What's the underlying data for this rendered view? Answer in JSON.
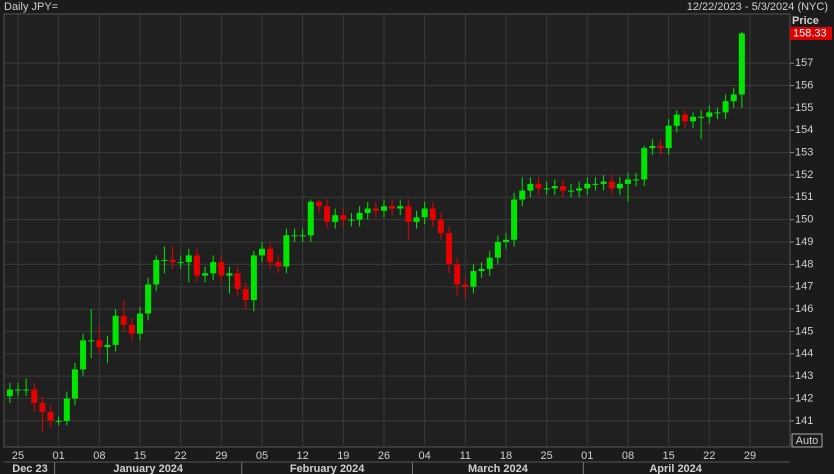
{
  "chart_data": {
    "type": "candlestick",
    "title": "Daily JPY=",
    "date_range": "12/22/2023 - 5/3/2024 (NYC)",
    "y_label": "Price",
    "scale_button": "Auto",
    "periods": [
      "Dec 23",
      "January 2024",
      "February 2024",
      "March 2024",
      "April 2024"
    ],
    "categories": [
      null,
      "25",
      null,
      null,
      null,
      null,
      "01",
      null,
      null,
      null,
      null,
      "08",
      null,
      null,
      null,
      null,
      "15",
      null,
      null,
      null,
      null,
      "22",
      null,
      null,
      null,
      null,
      "29",
      null,
      null,
      null,
      null,
      "05",
      null,
      null,
      null,
      null,
      "12",
      null,
      null,
      null,
      null,
      "19",
      null,
      null,
      null,
      null,
      "26",
      null,
      null,
      null,
      null,
      "04",
      null,
      null,
      null,
      null,
      "11",
      null,
      null,
      null,
      null,
      "18",
      null,
      null,
      null,
      null,
      "25",
      null,
      null,
      null,
      null,
      "01",
      null,
      null,
      null,
      null,
      "08",
      null,
      null,
      null,
      null,
      "15",
      null,
      null,
      null,
      null,
      "22",
      null,
      null,
      null,
      null,
      "29"
    ],
    "open": [
      142.1,
      142.4,
      142.4,
      142.4,
      141.8,
      141.4,
      141.0,
      141.0,
      142.0,
      143.3,
      144.6,
      144.6,
      144.3,
      144.4,
      145.7,
      145.3,
      144.9,
      145.8,
      147.1,
      148.2,
      148.2,
      148.1,
      148.1,
      148.4,
      147.5,
      147.6,
      148.1,
      147.5,
      147.6,
      146.9,
      146.4,
      148.4,
      148.7,
      148.1,
      147.9,
      149.3,
      149.3,
      149.3,
      150.8,
      150.6,
      149.9,
      150.2,
      150.0,
      150.0,
      150.3,
      150.5,
      150.4,
      150.6,
      150.5,
      150.6,
      149.9,
      150.1,
      150.5,
      150.0,
      149.4,
      148.0,
      147.1,
      147.0,
      147.7,
      147.8,
      148.3,
      149.0,
      149.1,
      150.9,
      151.3,
      151.6,
      151.4,
      151.4,
      151.5,
      151.3,
      151.3,
      151.4,
      151.6,
      151.6,
      151.7,
      151.4,
      151.6,
      151.8,
      151.8,
      153.2,
      153.3,
      153.2,
      154.2,
      154.7,
      154.4,
      154.6,
      154.6,
      154.8,
      154.8,
      155.3,
      155.6,
      null
    ],
    "high": [
      142.7,
      142.7,
      142.9,
      142.7,
      142.1,
      141.7,
      141.2,
      142.3,
      143.6,
      144.9,
      146.0,
      145.2,
      144.8,
      146.0,
      146.4,
      145.6,
      146.1,
      147.4,
      148.4,
      148.8,
      148.8,
      148.4,
      148.7,
      148.7,
      147.9,
      148.4,
      148.4,
      147.9,
      147.9,
      147.2,
      148.6,
      149.0,
      149.0,
      148.4,
      149.6,
      149.6,
      149.6,
      150.9,
      150.9,
      150.9,
      150.5,
      150.5,
      150.3,
      150.6,
      150.8,
      150.8,
      150.9,
      150.9,
      150.9,
      150.9,
      150.4,
      150.8,
      150.8,
      150.3,
      149.7,
      148.3,
      147.4,
      148.0,
      148.1,
      148.6,
      149.3,
      149.4,
      151.2,
      151.9,
      151.9,
      151.9,
      151.7,
      151.8,
      151.8,
      151.6,
      151.7,
      151.9,
      151.9,
      152.0,
      152.0,
      151.9,
      152.1,
      152.1,
      153.3,
      153.6,
      153.6,
      154.5,
      154.9,
      154.9,
      154.8,
      154.9,
      155.1,
      155.0,
      155.6,
      155.9,
      158.4,
      null
    ],
    "low": [
      141.8,
      142.1,
      142.1,
      141.4,
      140.5,
      140.7,
      140.8,
      140.8,
      141.7,
      143.0,
      143.8,
      144.0,
      143.6,
      144.1,
      145.0,
      144.6,
      144.6,
      145.5,
      146.8,
      147.6,
      147.8,
      147.8,
      147.2,
      147.2,
      147.2,
      147.3,
      147.2,
      146.7,
      146.6,
      146.0,
      145.9,
      148.1,
      147.8,
      147.6,
      147.6,
      149.0,
      149.0,
      149.0,
      150.3,
      149.6,
      149.6,
      149.7,
      149.7,
      149.7,
      150.0,
      150.1,
      150.1,
      150.2,
      150.2,
      149.1,
      149.6,
      149.8,
      149.7,
      149.1,
      147.6,
      146.6,
      146.5,
      146.7,
      147.4,
      147.5,
      148.0,
      148.7,
      148.8,
      150.6,
      151.0,
      151.1,
      151.1,
      151.1,
      151.0,
      151.0,
      151.0,
      151.1,
      151.3,
      151.3,
      151.1,
      151.1,
      150.8,
      151.5,
      151.5,
      152.9,
      152.9,
      152.9,
      153.9,
      154.1,
      154.1,
      153.6,
      154.3,
      154.5,
      154.5,
      155.0,
      155.0,
      null
    ],
    "close": [
      142.4,
      142.4,
      142.4,
      141.8,
      141.4,
      141.0,
      141.0,
      142.0,
      143.3,
      144.6,
      144.6,
      144.3,
      144.4,
      145.7,
      145.3,
      144.9,
      145.8,
      147.1,
      148.2,
      148.2,
      148.1,
      148.1,
      148.4,
      147.5,
      147.6,
      148.1,
      147.5,
      147.6,
      146.9,
      146.4,
      148.4,
      148.7,
      148.1,
      147.9,
      149.3,
      149.3,
      149.3,
      150.8,
      150.6,
      149.9,
      150.2,
      150.0,
      150.0,
      150.3,
      150.5,
      150.4,
      150.6,
      150.5,
      150.6,
      149.9,
      150.1,
      150.5,
      150.0,
      149.4,
      148.0,
      147.1,
      147.0,
      147.7,
      147.8,
      148.3,
      149.0,
      149.1,
      150.9,
      151.3,
      151.6,
      151.4,
      151.4,
      151.5,
      151.3,
      151.3,
      151.4,
      151.6,
      151.6,
      151.7,
      151.4,
      151.6,
      151.8,
      151.8,
      153.2,
      153.3,
      153.2,
      154.2,
      154.7,
      154.4,
      154.6,
      154.6,
      154.8,
      154.8,
      155.3,
      155.6,
      158.33,
      null
    ],
    "up_color": "#00e600",
    "down_color": "#e60000",
    "ylim": [
      139.83,
      159.2
    ],
    "yticks": [
      141,
      142,
      143,
      144,
      145,
      146,
      147,
      148,
      149,
      150,
      151,
      152,
      153,
      154,
      155,
      156,
      157
    ],
    "grid": true
  }
}
